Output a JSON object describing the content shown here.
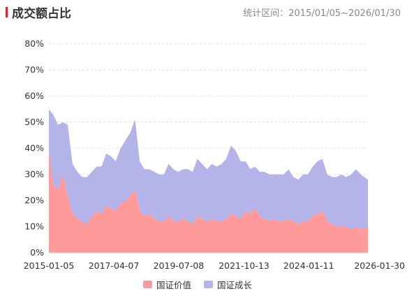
{
  "header": {
    "title": "成交额占比",
    "period_label": "统计区间：2015/01/05~2026/01/30"
  },
  "colors": {
    "accent": "#d9232d",
    "value_series": "#ff9a9a",
    "growth_series": "#b4b4ea",
    "grid": "#e3e3e3"
  },
  "chart_data": {
    "type": "area",
    "stacked": true,
    "title": "成交额占比",
    "xlabel": "",
    "ylabel": "",
    "ylim": [
      0,
      80
    ],
    "y_unit": "%",
    "y_ticks": [
      "0%",
      "10%",
      "20%",
      "30%",
      "40%",
      "50%",
      "60%",
      "70%",
      "80%"
    ],
    "x_ticks": [
      "2015-01-05",
      "2017-04-07",
      "2019-07-08",
      "2021-10-13",
      "2024-01-11",
      "2026-01-30"
    ],
    "x_range": [
      "2015-01-05",
      "2026-01-30"
    ],
    "grid": true,
    "legend_position": "bottom",
    "x": [
      "2015-01-05",
      "2015-03-01",
      "2015-05-01",
      "2015-07-01",
      "2015-09-01",
      "2015-11-01",
      "2016-01-01",
      "2016-03-01",
      "2016-05-01",
      "2016-07-01",
      "2016-09-01",
      "2016-11-01",
      "2017-01-01",
      "2017-03-01",
      "2017-05-01",
      "2017-07-01",
      "2017-09-01",
      "2017-11-01",
      "2018-01-01",
      "2018-03-01",
      "2018-05-01",
      "2018-07-01",
      "2018-09-01",
      "2018-11-01",
      "2019-01-01",
      "2019-03-01",
      "2019-05-01",
      "2019-07-01",
      "2019-09-01",
      "2019-11-01",
      "2020-01-01",
      "2020-03-01",
      "2020-05-01",
      "2020-07-01",
      "2020-09-01",
      "2020-11-01",
      "2021-01-01",
      "2021-03-01",
      "2021-05-01",
      "2021-07-01",
      "2021-09-01",
      "2021-11-01",
      "2022-01-01",
      "2022-03-01",
      "2022-05-01",
      "2022-07-01",
      "2022-09-01",
      "2022-11-01",
      "2023-01-01",
      "2023-03-01",
      "2023-05-01",
      "2023-07-01",
      "2023-09-01",
      "2023-11-01",
      "2024-01-01",
      "2024-03-01",
      "2024-05-01",
      "2024-07-01",
      "2024-09-01",
      "2024-11-01",
      "2025-01-01",
      "2025-03-01",
      "2025-05-01",
      "2025-07-01",
      "2025-09-01",
      "2025-11-01",
      "2026-01-30"
    ],
    "series": [
      {
        "name": "国证价值",
        "values": [
          38,
          26,
          24,
          30,
          21,
          15,
          13,
          12,
          11,
          14,
          16,
          15,
          18,
          17,
          16,
          19,
          20,
          22,
          24,
          16,
          14,
          15,
          13,
          12,
          12,
          14,
          12,
          12,
          13,
          12,
          11,
          14,
          13,
          12,
          13,
          12,
          12,
          13,
          15,
          14,
          13,
          16,
          15,
          17,
          14,
          13,
          12,
          13,
          12,
          12,
          13,
          12,
          11,
          12,
          12,
          14,
          15,
          16,
          12,
          11,
          10,
          10,
          10,
          9,
          10,
          9,
          10
        ]
      },
      {
        "name": "国证成长",
        "values": [
          17,
          27,
          25,
          20,
          28,
          19,
          18,
          17,
          18,
          17,
          17,
          18,
          20,
          20,
          19,
          21,
          23,
          24,
          27,
          19,
          18,
          17,
          18,
          18,
          18,
          20,
          20,
          19,
          19,
          20,
          20,
          22,
          21,
          20,
          21,
          21,
          22,
          23,
          26,
          25,
          22,
          19,
          17,
          16,
          17,
          18,
          18,
          17,
          18,
          18,
          19,
          17,
          17,
          18,
          18,
          19,
          20,
          20,
          18,
          18,
          19,
          20,
          19,
          21,
          22,
          21,
          18
        ]
      }
    ]
  },
  "legend": {
    "items": [
      {
        "label": "国证价值",
        "color": "#ff9a9a"
      },
      {
        "label": "国证成长",
        "color": "#b4b4ea"
      }
    ]
  }
}
